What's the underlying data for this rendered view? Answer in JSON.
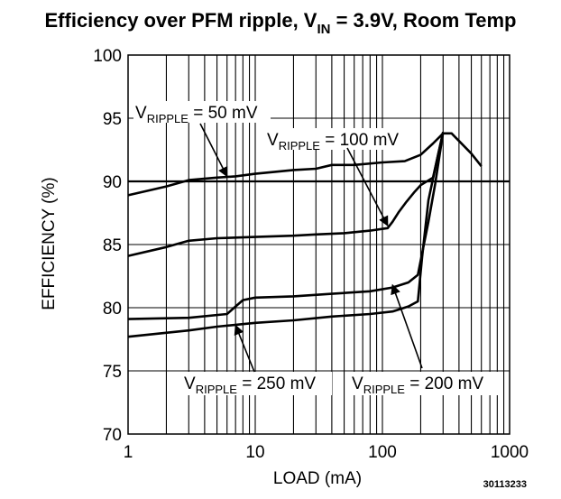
{
  "chart_data": {
    "type": "line",
    "title": {
      "main": "Efficiency over PFM ripple, V",
      "sub": "IN",
      "rest": " = 3.9V, Room Temp"
    },
    "xlabel": "LOAD (mA)",
    "ylabel": "EFFICIENCY (%)",
    "x_scale": "log",
    "xlim": [
      1,
      1000
    ],
    "ylim": [
      70,
      100
    ],
    "x_ticks": [
      {
        "value": 1,
        "label": "1"
      },
      {
        "value": 10,
        "label": "10"
      },
      {
        "value": 100,
        "label": "100"
      },
      {
        "value": 1000,
        "label": "1000"
      }
    ],
    "y_ticks": [
      {
        "value": 70,
        "label": "70"
      },
      {
        "value": 75,
        "label": "75"
      },
      {
        "value": 80,
        "label": "80"
      },
      {
        "value": 85,
        "label": "85"
      },
      {
        "value": 90,
        "label": "90"
      },
      {
        "value": 95,
        "label": "95"
      },
      {
        "value": 100,
        "label": "100"
      }
    ],
    "grid": true,
    "series": [
      {
        "name": "VRIPPLE = 50 mV",
        "points": [
          [
            1,
            88.9
          ],
          [
            2,
            89.6
          ],
          [
            3,
            90.1
          ],
          [
            5,
            90.3
          ],
          [
            7,
            90.4
          ],
          [
            10,
            90.6
          ],
          [
            20,
            90.9
          ],
          [
            30,
            91.0
          ],
          [
            40,
            91.3
          ],
          [
            60,
            91.3
          ],
          [
            100,
            91.5
          ],
          [
            150,
            91.6
          ],
          [
            200,
            92.1
          ],
          [
            250,
            93.0
          ],
          [
            300,
            93.8
          ],
          [
            350,
            93.8
          ],
          [
            400,
            93.2
          ],
          [
            500,
            92.2
          ],
          [
            600,
            91.2
          ]
        ]
      },
      {
        "name": "VRIPPLE = 100 mV",
        "points": [
          [
            1,
            84.1
          ],
          [
            2,
            84.8
          ],
          [
            3,
            85.3
          ],
          [
            5,
            85.5
          ],
          [
            10,
            85.6
          ],
          [
            20,
            85.7
          ],
          [
            30,
            85.8
          ],
          [
            50,
            85.9
          ],
          [
            80,
            86.1
          ],
          [
            110,
            86.3
          ],
          [
            120,
            86.8
          ],
          [
            135,
            87.6
          ],
          [
            155,
            88.4
          ],
          [
            180,
            89.2
          ],
          [
            200,
            89.7
          ],
          [
            250,
            90.3
          ],
          [
            300,
            93.9
          ]
        ]
      },
      {
        "name": "VRIPPLE = 200 mV",
        "points": [
          [
            1,
            79.1
          ],
          [
            3,
            79.2
          ],
          [
            6,
            79.5
          ],
          [
            7,
            80.1
          ],
          [
            8,
            80.6
          ],
          [
            10,
            80.8
          ],
          [
            20,
            80.9
          ],
          [
            40,
            81.1
          ],
          [
            80,
            81.3
          ],
          [
            120,
            81.6
          ],
          [
            160,
            82.0
          ],
          [
            190,
            82.6
          ],
          [
            210,
            84.8
          ],
          [
            230,
            86.8
          ],
          [
            260,
            89.8
          ],
          [
            300,
            93.9
          ]
        ]
      },
      {
        "name": "VRIPPLE = 250 mV",
        "points": [
          [
            1,
            77.7
          ],
          [
            3,
            78.2
          ],
          [
            5,
            78.5
          ],
          [
            10,
            78.8
          ],
          [
            20,
            79.0
          ],
          [
            40,
            79.3
          ],
          [
            80,
            79.5
          ],
          [
            120,
            79.7
          ],
          [
            160,
            80.1
          ],
          [
            190,
            80.5
          ],
          [
            205,
            84.0
          ],
          [
            230,
            88.5
          ],
          [
            270,
            91.8
          ],
          [
            300,
            93.9
          ]
        ]
      }
    ],
    "annotations": [
      {
        "main": "V",
        "sub": "RIPPLE",
        "rest": " = 50 mV",
        "target": [
          6,
          90.4
        ]
      },
      {
        "main": "V",
        "sub": "RIPPLE",
        "rest": " = 100 mV",
        "target": [
          110,
          86.5
        ]
      },
      {
        "main": "V",
        "sub": "RIPPLE",
        "rest": " = 250 mV",
        "target": [
          7,
          78.6
        ]
      },
      {
        "main": "V",
        "sub": "RIPPLE",
        "rest": " = 200 mV",
        "target": [
          120,
          81.8
        ]
      }
    ],
    "figure_code": "30113233"
  }
}
